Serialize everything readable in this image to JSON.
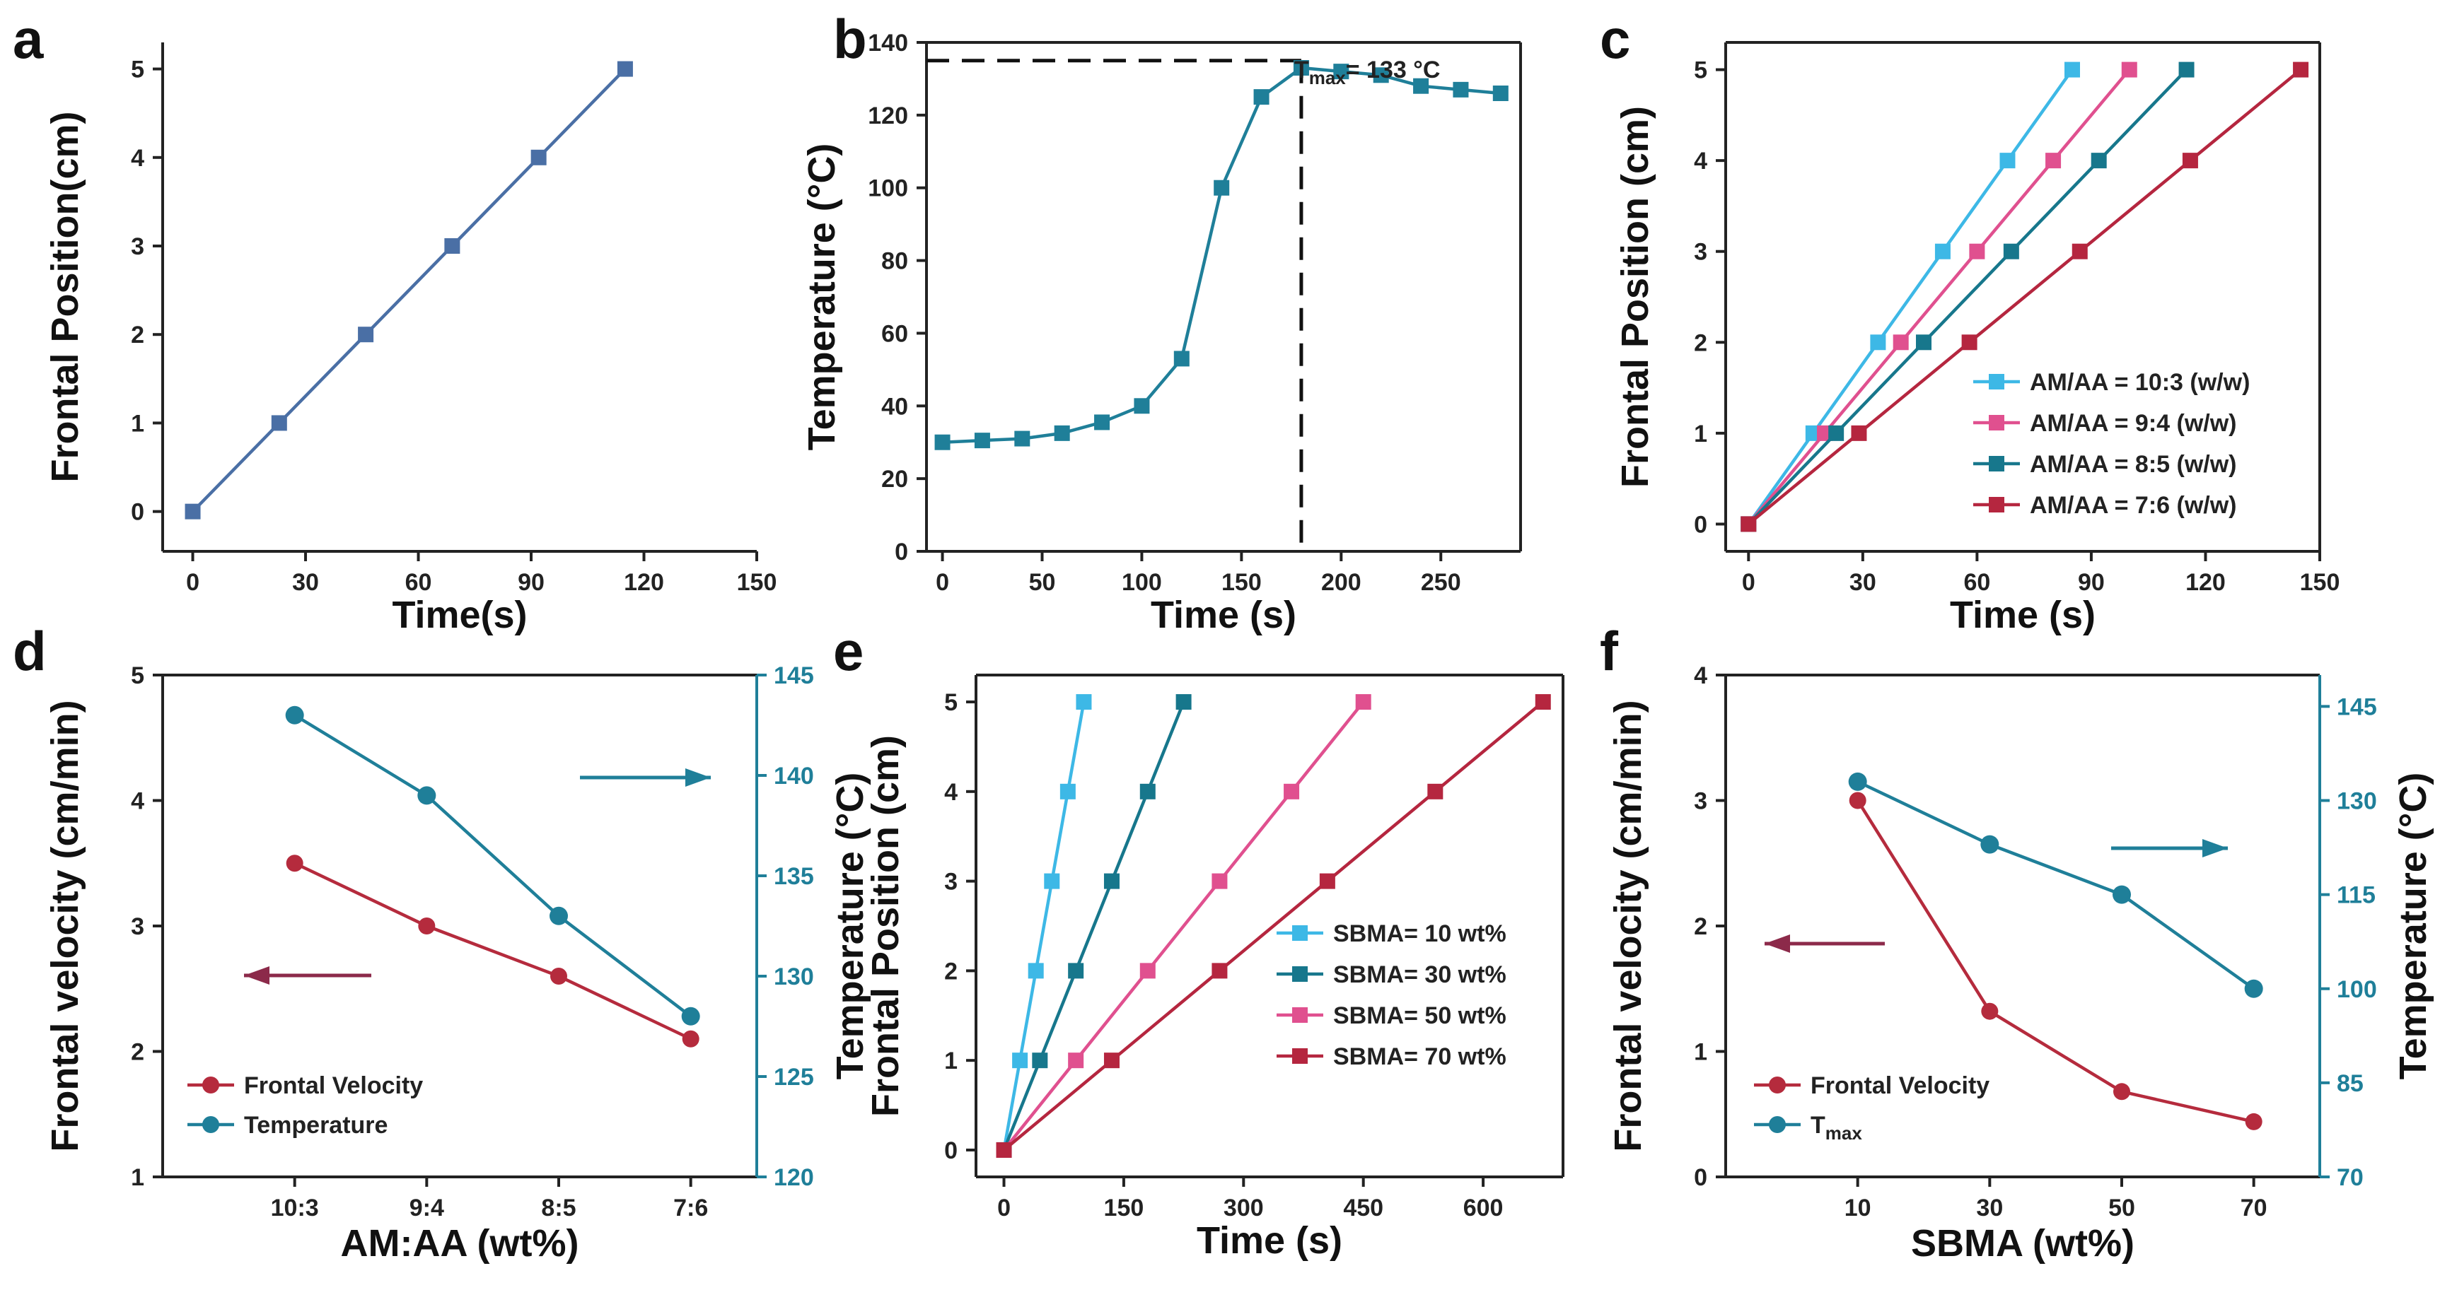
{
  "colors": {
    "a_line": "#4a6fa5",
    "teal": "#1f7f99",
    "light_blue": "#3db8e6",
    "pink": "#e0508f",
    "dark_teal": "#17778c",
    "crimson": "#b5263f",
    "velocity_red": "#b52b3d",
    "arrow_purple": "#8c2a4a"
  },
  "chart_data": [
    {
      "panel": "a",
      "type": "line",
      "xlabel": "Time(s)",
      "ylabel": "Frontal Position(cm)",
      "xlim": [
        -8,
        150
      ],
      "ylim": [
        -0.45,
        5.3
      ],
      "xticks": [
        0,
        30,
        60,
        90,
        120,
        150
      ],
      "yticks": [
        0,
        1,
        2,
        3,
        4,
        5
      ],
      "series": [
        {
          "name": "a",
          "color": "#4a6fa5",
          "x": [
            0,
            23,
            46,
            69,
            92,
            115
          ],
          "y": [
            0,
            1,
            2,
            3,
            4,
            5
          ]
        }
      ]
    },
    {
      "panel": "b",
      "type": "line",
      "xlabel": "Time (s)",
      "ylabel": "Temperature (°C)",
      "xlim": [
        -8,
        290
      ],
      "ylim": [
        0,
        140
      ],
      "xticks": [
        0,
        50,
        100,
        150,
        200,
        250
      ],
      "yticks": [
        0,
        20,
        40,
        60,
        80,
        100,
        120,
        140
      ],
      "annotation": {
        "prefix": "T",
        "sub": "max",
        "rest": "= 133 °C",
        "x": 180,
        "y": 135
      },
      "series": [
        {
          "name": "temperature",
          "color": "#1f7f99",
          "x": [
            0,
            20,
            40,
            60,
            80,
            100,
            120,
            140,
            160,
            180,
            200,
            220,
            240,
            260,
            280
          ],
          "y": [
            30,
            30.5,
            31,
            32.5,
            35.5,
            40,
            53,
            100,
            125,
            133,
            132,
            131,
            128,
            127,
            126
          ]
        }
      ]
    },
    {
      "panel": "c",
      "type": "line",
      "xlabel": "Time (s)",
      "ylabel": "Frontal Position (cm)",
      "xlim": [
        -6,
        150
      ],
      "ylim": [
        -0.3,
        5.3
      ],
      "xticks": [
        0,
        30,
        60,
        90,
        120,
        150
      ],
      "yticks": [
        0,
        1,
        2,
        3,
        4,
        5
      ],
      "series": [
        {
          "name": "AM/AA = 10:3 (w/w)",
          "color": "#3db8e6",
          "x": [
            0,
            17,
            34,
            51,
            68,
            85
          ],
          "y": [
            0,
            1,
            2,
            3,
            4,
            5
          ]
        },
        {
          "name": "AM/AA = 9:4 (w/w)",
          "color": "#e0508f",
          "x": [
            0,
            20,
            40,
            60,
            80,
            100
          ],
          "y": [
            0,
            1,
            2,
            3,
            4,
            5
          ]
        },
        {
          "name": "AM/AA = 8:5 (w/w)",
          "color": "#17778c",
          "x": [
            0,
            23,
            46,
            69,
            92,
            115
          ],
          "y": [
            0,
            1,
            2,
            3,
            4,
            5
          ]
        },
        {
          "name": "AM/AA = 7:6 (w/w)",
          "color": "#b5263f",
          "x": [
            0,
            29,
            58,
            87,
            116,
            145
          ],
          "y": [
            0,
            1,
            2,
            3,
            4,
            5
          ]
        }
      ]
    },
    {
      "panel": "d",
      "type": "line",
      "xlabel": "AM:AA  (wt%)",
      "ylabel": "Frontal velocity (cm/min)",
      "ylabel_right": "Temperature (°C)",
      "categories": [
        "10:3",
        "9:4",
        "8:5",
        "7:6"
      ],
      "xlim": [
        0,
        4.5
      ],
      "ylim": [
        1,
        5
      ],
      "ylim_right": [
        120,
        145
      ],
      "yticks": [
        1,
        2,
        3,
        4,
        5
      ],
      "yticks_right": [
        120,
        125,
        130,
        135,
        140,
        145
      ],
      "series": [
        {
          "name": "Frontal Velocity",
          "axis": "left",
          "color": "#b52b3d",
          "values": [
            3.5,
            3.0,
            2.6,
            2.1
          ]
        },
        {
          "name": "Temperature",
          "axis": "right",
          "color": "#1f7f99",
          "values": [
            143,
            139,
            133,
            128
          ]
        }
      ]
    },
    {
      "panel": "e",
      "type": "line",
      "xlabel": "Time (s)",
      "ylabel": "Frontal Position (cm)",
      "xlim": [
        -35,
        700
      ],
      "ylim": [
        -0.3,
        5.3
      ],
      "xticks": [
        0,
        150,
        300,
        450,
        600
      ],
      "yticks": [
        0,
        1,
        2,
        3,
        4,
        5
      ],
      "series": [
        {
          "name": "SBMA= 10 wt%",
          "color": "#3db8e6",
          "x": [
            0,
            20,
            40,
            60,
            80,
            100
          ],
          "y": [
            0,
            1,
            2,
            3,
            4,
            5
          ]
        },
        {
          "name": "SBMA= 30 wt%",
          "color": "#17778c",
          "x": [
            0,
            45,
            90,
            135,
            180,
            225
          ],
          "y": [
            0,
            1,
            2,
            3,
            4,
            5
          ]
        },
        {
          "name": "SBMA= 50 wt%",
          "color": "#e0508f",
          "x": [
            0,
            90,
            180,
            270,
            360,
            450
          ],
          "y": [
            0,
            1,
            2,
            3,
            4,
            5
          ]
        },
        {
          "name": "SBMA= 70 wt%",
          "color": "#b5263f",
          "x": [
            0,
            135,
            270,
            405,
            540,
            675
          ],
          "y": [
            0,
            1,
            2,
            3,
            4,
            5
          ]
        }
      ]
    },
    {
      "panel": "f",
      "type": "line",
      "xlabel": "SBMA (wt%)",
      "ylabel": "Frontal velocity (cm/min)",
      "ylabel_right": "Temperature (°C)",
      "categories": [
        "10",
        "30",
        "50",
        "70"
      ],
      "xlim": [
        0,
        4.5
      ],
      "ylim": [
        0,
        4
      ],
      "ylim_right": [
        70,
        150
      ],
      "yticks": [
        0,
        1,
        2,
        3,
        4
      ],
      "yticks_right": [
        70,
        85,
        100,
        115,
        130,
        145
      ],
      "series": [
        {
          "name": "Frontal Velocity",
          "axis": "left",
          "color": "#b52b3d",
          "values": [
            3.0,
            1.32,
            0.68,
            0.44
          ]
        },
        {
          "name": "T",
          "sub": "max",
          "axis": "right",
          "color": "#1f7f99",
          "values": [
            133,
            123,
            115,
            100
          ]
        }
      ]
    }
  ]
}
